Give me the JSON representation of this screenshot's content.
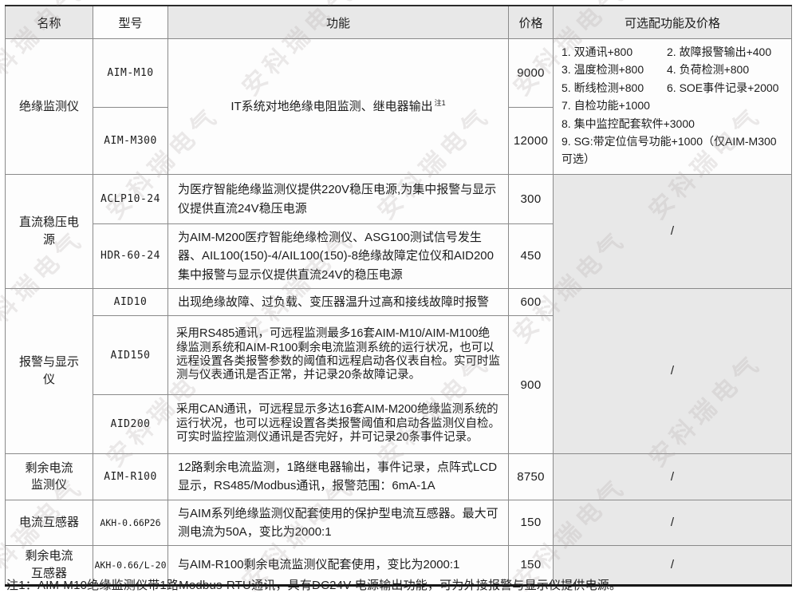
{
  "table": {
    "columns": [
      "名称",
      "型号",
      "功能",
      "价格",
      "可选配功能及价格"
    ],
    "insulation": {
      "name": "绝缘监测仪",
      "model_1": "AIM-M10",
      "price_1": "9000",
      "model_2": "AIM-M300",
      "price_2": "12000",
      "function": "IT系统对地绝缘电阻监测、继电器输出",
      "function_note": "注1",
      "options": [
        "1. 双通讯+800",
        "2. 故障报警输出+400",
        "3. 温度检测+800",
        "4. 负荷检测+800",
        "5. 断线检测+800",
        "6. SOE事件记录+2000",
        "7. 自检功能+1000",
        "8. 集中监控配套软件+3000",
        "9. SG:带定位信号功能+1000（仅AIM-M300可选）"
      ]
    },
    "dc_power": {
      "name": "直流稳压电源",
      "model_1": "ACLP10-24",
      "function_1": "为医疗智能绝缘监测仪提供220V稳压电源,为集中报警与显示仪提供直流24V稳压电源",
      "price_1": "300",
      "model_2": "HDR-60-24",
      "function_2": "为AIM-M200医疗智能绝缘检测仪、ASG100测试信号发生器、AIL100(150)-4/AIL100(150)-8绝缘故障定位仪和AID200集中报警与显示仪提供直流24V的稳压电源",
      "price_2": "450",
      "optional": "/"
    },
    "alarm_display": {
      "name": "报警与显示仪",
      "model_1": "AID10",
      "function_1": "出现绝缘故障、过负载、变压器温升过高和接线故障时报警",
      "price_1": "600",
      "model_2": "AID150",
      "function_2": "采用RS485通讯，可远程监测最多16套AIM-M10/AIM-M100绝缘监测系统和AIM-R100剩余电流监测系统的运行状况，也可以远程设置各类报警参数的阈值和远程启动各仪表自检。实可时监测与仪表通讯是否正常，并记录20条故障记录。",
      "model_3": "AID200",
      "function_3": "采用CAN通讯，可远程显示多达16套AIM-M200绝缘监测系统的运行状况，也可以远程设置各类报警阈值和启动各监测仪自检。可实时监控监测仪通讯是否完好，并可记录20条事件记录。",
      "price_23": "900",
      "optional": "/"
    },
    "residual_monitor": {
      "name": "剩余电流\n监测仪",
      "model": "AIM-R100",
      "function": "12路剩余电流监测，1路继电器输出，事件记录，点阵式LCD显示，RS485/Modbus通讯，报警范围：6mA-1A",
      "price": "8750",
      "optional": "/"
    },
    "ct": {
      "name": "电流互感器",
      "model": "AKH-0.66P26",
      "function": "与AIM系列绝缘监测仪配套使用的保护型电流互感器。最大可测电流为50A，变比为2000:1",
      "price": "150",
      "optional": "/"
    },
    "residual_ct": {
      "name": "剩余电流\n互感器",
      "model": "AKH-0.66/L-20",
      "function": "与AIM-R100剩余电流监测仪配套使用，变比为2000:1",
      "price": "150",
      "optional": "/"
    }
  },
  "footnote": "注1：AIM-M10绝缘监测仪带1路Modbus-RTU通讯，具有DC24V 电源输出功能，可为外接报警与显示仪提供电源。",
  "watermark": {
    "text": "安科瑞电气"
  },
  "colors": {
    "header_bg": "#e8e8e8",
    "grid_line": "#8a8a8a",
    "text": "#1c1c1c"
  }
}
